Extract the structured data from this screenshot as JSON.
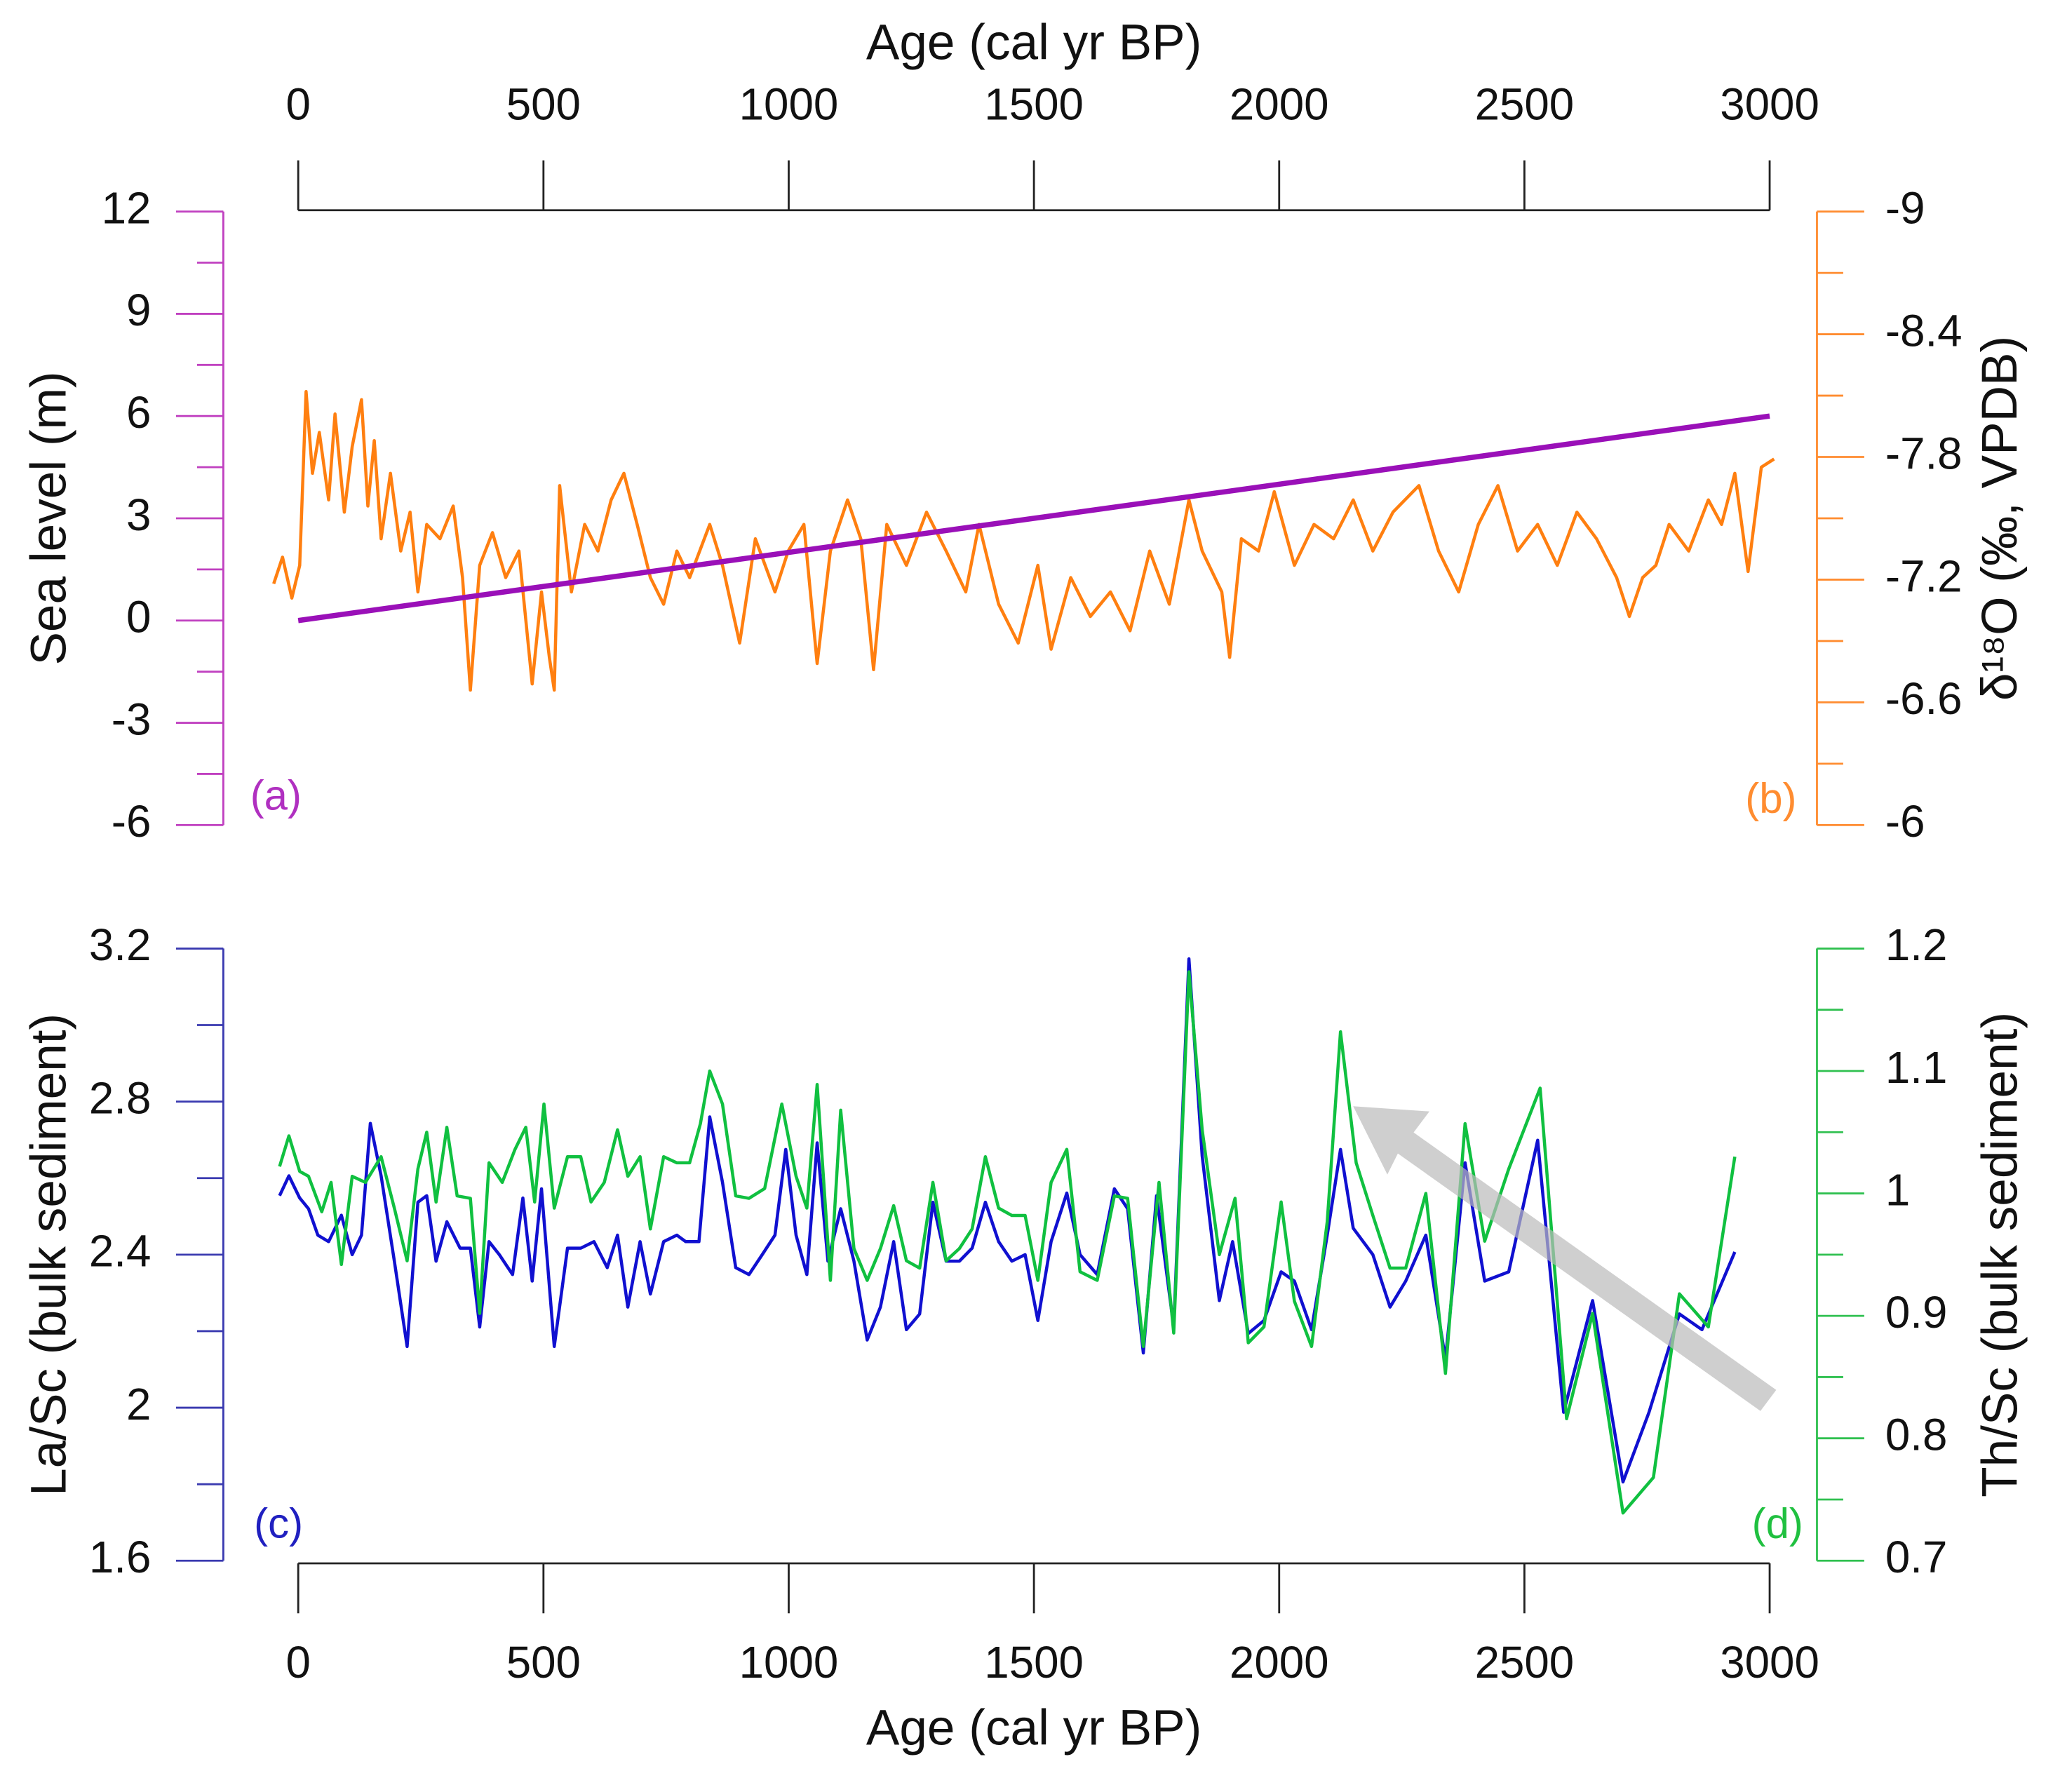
{
  "chart_data": [
    {
      "type": "line",
      "xlabel": "Age (cal yr BP)",
      "x_axis_position": "top",
      "xlim": [
        0,
        3000
      ],
      "xticks": [
        0,
        500,
        1000,
        1500,
        2000,
        2500,
        3000
      ],
      "ylabel": "Sea level (m)",
      "ylim": [
        -6,
        12
      ],
      "yticks": [
        -6,
        -3,
        0,
        3,
        6,
        9,
        12
      ],
      "y_color": "#c040c0",
      "y2label": "δ¹⁸O (‰, VPDB)",
      "y2lim": [
        -6,
        -9
      ],
      "y2ticks": [
        -9,
        -8.4,
        -7.8,
        -7.2,
        -6.6,
        -6
      ],
      "y2_color": "#ff8c30",
      "annotations": [
        {
          "text": "(a)",
          "color": "#b030c0"
        },
        {
          "text": "(b)",
          "color": "#ff8c30"
        }
      ],
      "series": [
        {
          "color": "#ff7f10",
          "axis": "y2",
          "x": [
            -50,
            -32,
            -13,
            3,
            16,
            29,
            43,
            62,
            75,
            94,
            110,
            129,
            142,
            155,
            169,
            188,
            209,
            228,
            244,
            262,
            289,
            316,
            335,
            351,
            370,
            396,
            423,
            450,
            477,
            496,
            512,
            522,
            533,
            557,
            584,
            611,
            638,
            664,
            691,
            718,
            745,
            772,
            798,
            839,
            865,
            900,
            932,
            972,
            999,
            1031,
            1058,
            1085,
            1120,
            1147,
            1173,
            1200,
            1240,
            1281,
            1321,
            1361,
            1388,
            1428,
            1468,
            1508,
            1535,
            1575,
            1615,
            1656,
            1696,
            1736,
            1776,
            1816,
            1843,
            1883,
            1899,
            1923,
            1958,
            1990,
            2031,
            2071,
            2111,
            2151,
            2191,
            2232,
            2285,
            2325,
            2366,
            2406,
            2446,
            2486,
            2527,
            2567,
            2607,
            2647,
            2688,
            2714,
            2741,
            2768,
            2795,
            2835,
            2875,
            2902,
            2929,
            2956,
            2983,
            3009
          ],
          "values": [
            -7.18,
            -7.31,
            -7.11,
            -7.27,
            -8.12,
            -7.72,
            -7.92,
            -7.59,
            -8.01,
            -7.53,
            -7.85,
            -8.08,
            -7.56,
            -7.88,
            -7.4,
            -7.72,
            -7.34,
            -7.53,
            -7.14,
            -7.47,
            -7.4,
            -7.56,
            -7.21,
            -6.66,
            -7.27,
            -7.43,
            -7.21,
            -7.34,
            -6.69,
            -7.14,
            -6.82,
            -6.66,
            -7.66,
            -7.14,
            -7.47,
            -7.34,
            -7.59,
            -7.72,
            -7.47,
            -7.21,
            -7.08,
            -7.34,
            -7.21,
            -7.47,
            -7.27,
            -6.89,
            -7.4,
            -7.14,
            -7.34,
            -7.47,
            -6.79,
            -7.34,
            -7.59,
            -7.4,
            -6.76,
            -7.47,
            -7.27,
            -7.53,
            -7.34,
            -7.14,
            -7.47,
            -7.08,
            -6.89,
            -7.27,
            -6.86,
            -7.21,
            -7.02,
            -7.14,
            -6.95,
            -7.34,
            -7.08,
            -7.59,
            -7.34,
            -7.14,
            -6.82,
            -7.4,
            -7.34,
            -7.63,
            -7.27,
            -7.47,
            -7.4,
            -7.59,
            -7.34,
            -7.53,
            -7.66,
            -7.34,
            -7.14,
            -7.47,
            -7.66,
            -7.34,
            -7.47,
            -7.27,
            -7.53,
            -7.4,
            -7.21,
            -7.02,
            -7.21,
            -7.27,
            -7.47,
            -7.34,
            -7.59,
            -7.47,
            -7.72,
            -7.24,
            -7.75,
            -7.79
          ]
        },
        {
          "color": "#9a10b8",
          "axis": "y",
          "x": [
            0,
            3000
          ],
          "values": [
            0,
            6
          ]
        }
      ]
    },
    {
      "type": "line",
      "xlabel": "Age (cal yr BP)",
      "x_axis_position": "bottom",
      "xlim": [
        0,
        3000
      ],
      "xticks": [
        0,
        500,
        1000,
        1500,
        2000,
        2500,
        3000
      ],
      "ylabel": "La/Sc (bulk sediment)",
      "ylim": [
        1.6,
        3.2
      ],
      "yticks": [
        1.6,
        2,
        2.4,
        2.8,
        3.2
      ],
      "y_color": "#3a3ab0",
      "y2label": "Th/Sc (bulk sediment)",
      "y2lim": [
        0.7,
        1.2
      ],
      "y2ticks": [
        0.7,
        0.8,
        0.9,
        1,
        1.1,
        1.2
      ],
      "y2_color": "#30c050",
      "annotations": [
        {
          "text": "(c)",
          "color": "#2020c0"
        },
        {
          "text": "(d)",
          "color": "#20c040"
        }
      ],
      "series": [
        {
          "color": "#1010d0",
          "axis": "y",
          "x": [
            -38,
            -19,
            3,
            21,
            40,
            62,
            88,
            110,
            129,
            147,
            169,
            196,
            222,
            244,
            262,
            281,
            303,
            330,
            351,
            370,
            389,
            410,
            437,
            458,
            477,
            496,
            522,
            549,
            576,
            603,
            630,
            651,
            672,
            697,
            718,
            745,
            772,
            790,
            817,
            839,
            865,
            892,
            919,
            946,
            972,
            994,
            1015,
            1037,
            1058,
            1080,
            1106,
            1133,
            1160,
            1187,
            1214,
            1240,
            1267,
            1294,
            1321,
            1348,
            1374,
            1401,
            1428,
            1455,
            1482,
            1508,
            1535,
            1567,
            1594,
            1629,
            1664,
            1691,
            1723,
            1750,
            1785,
            1816,
            1843,
            1878,
            1905,
            1937,
            1969,
            2004,
            2031,
            2066,
            2098,
            2125,
            2151,
            2191,
            2226,
            2258,
            2299,
            2339,
            2379,
            2419,
            2468,
            2527,
            2580,
            2639,
            2701,
            2754,
            2816,
            2862,
            2929
          ],
          "values": [
            2.554,
            2.606,
            2.548,
            2.52,
            2.451,
            2.434,
            2.503,
            2.4,
            2.451,
            2.743,
            2.606,
            2.383,
            2.16,
            2.537,
            2.554,
            2.383,
            2.486,
            2.417,
            2.417,
            2.211,
            2.434,
            2.4,
            2.348,
            2.548,
            2.331,
            2.572,
            2.16,
            2.417,
            2.417,
            2.434,
            2.366,
            2.451,
            2.263,
            2.434,
            2.297,
            2.434,
            2.451,
            2.434,
            2.434,
            2.76,
            2.589,
            2.366,
            2.348,
            2.4,
            2.451,
            2.675,
            2.451,
            2.348,
            2.692,
            2.383,
            2.52,
            2.383,
            2.177,
            2.263,
            2.434,
            2.204,
            2.245,
            2.537,
            2.383,
            2.383,
            2.417,
            2.537,
            2.434,
            2.383,
            2.4,
            2.228,
            2.434,
            2.561,
            2.4,
            2.348,
            2.572,
            2.52,
            2.143,
            2.554,
            2.211,
            3.173,
            2.658,
            2.28,
            2.434,
            2.194,
            2.228,
            2.355,
            2.331,
            2.204,
            2.451,
            2.675,
            2.469,
            2.4,
            2.263,
            2.331,
            2.451,
            2.126,
            2.64,
            2.331,
            2.355,
            2.699,
            1.988,
            2.28,
            1.806,
            1.988,
            2.245,
            2.204,
            2.407
          ]
        },
        {
          "color": "#10c040",
          "axis": "y2",
          "x": [
            -38,
            -19,
            3,
            21,
            48,
            67,
            88,
            110,
            137,
            169,
            196,
            222,
            244,
            262,
            281,
            303,
            324,
            351,
            370,
            389,
            416,
            442,
            464,
            482,
            501,
            522,
            549,
            576,
            597,
            624,
            651,
            672,
            697,
            718,
            745,
            772,
            798,
            820,
            839,
            865,
            892,
            919,
            951,
            986,
            1015,
            1037,
            1058,
            1085,
            1106,
            1133,
            1160,
            1187,
            1214,
            1240,
            1267,
            1294,
            1321,
            1348,
            1374,
            1401,
            1428,
            1455,
            1482,
            1508,
            1535,
            1567,
            1594,
            1629,
            1664,
            1691,
            1723,
            1755,
            1785,
            1816,
            1843,
            1878,
            1910,
            1937,
            1969,
            2004,
            2031,
            2066,
            2098,
            2125,
            2157,
            2191,
            2226,
            2258,
            2299,
            2339,
            2379,
            2419,
            2468,
            2532,
            2586,
            2639,
            2701,
            2763,
            2816,
            2875,
            2929
          ],
          "values": [
            1.022,
            1.047,
            1.018,
            1.014,
            0.985,
            1.009,
            0.942,
            1.014,
            1.009,
            1.03,
            0.988,
            0.945,
            1.02,
            1.05,
            0.993,
            1.054,
            0.998,
            0.996,
            0.902,
            1.025,
            1.009,
            1.036,
            1.054,
            0.993,
            1.073,
            0.988,
            1.03,
            1.03,
            0.993,
            1.009,
            1.052,
            1.014,
            1.03,
            0.971,
            1.03,
            1.025,
            1.025,
            1.057,
            1.1,
            1.073,
            0.998,
            0.996,
            1.004,
            1.073,
            1.014,
            0.988,
            1.089,
            0.929,
            1.068,
            0.955,
            0.929,
            0.955,
            0.99,
            0.945,
            0.939,
            1.009,
            0.945,
            0.955,
            0.971,
            1.03,
            0.988,
            0.982,
            0.982,
            0.929,
            1.009,
            1.036,
            0.936,
            0.929,
            0.998,
            0.996,
            0.875,
            1.009,
            0.886,
            1.181,
            1.052,
            0.95,
            0.996,
            0.878,
            0.891,
            0.993,
            0.912,
            0.875,
            0.977,
            1.132,
            1.025,
            0.982,
            0.939,
            0.939,
            1.0,
            0.853,
            1.057,
            0.961,
            1.02,
            1.086,
            0.816,
            0.902,
            0.739,
            0.768,
            0.918,
            0.891,
            1.03
          ]
        }
      ]
    }
  ]
}
